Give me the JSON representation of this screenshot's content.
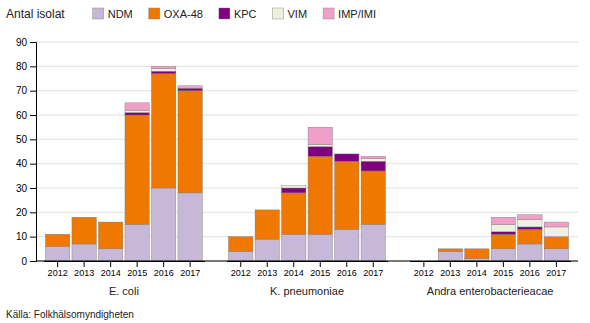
{
  "chart_data": {
    "type": "bar",
    "stacked": true,
    "ylabel": "Antal isolat",
    "source": "Källa: Folkhälsomyndigheten",
    "groups": [
      "E. coli",
      "K. pneumoniae",
      "Andra enterobacterieacae"
    ],
    "categories": [
      "2012",
      "2013",
      "2014",
      "2015",
      "2016",
      "2017"
    ],
    "series": [
      {
        "name": "NDM",
        "color": "#c8b8d8",
        "values": [
          [
            6,
            7,
            5,
            15,
            30,
            28
          ],
          [
            4,
            9,
            11,
            11,
            13,
            15
          ],
          [
            0,
            4,
            1,
            5,
            7,
            5
          ]
        ]
      },
      {
        "name": "OXA-48",
        "color": "#f07800",
        "values": [
          [
            5,
            11,
            11,
            45,
            47,
            42
          ],
          [
            6,
            12,
            17,
            32,
            28,
            22
          ],
          [
            0,
            1,
            4,
            6,
            6,
            5
          ]
        ]
      },
      {
        "name": "KPC",
        "color": "#800080",
        "values": [
          [
            0,
            0,
            0,
            1,
            1,
            1
          ],
          [
            0,
            0,
            2,
            4,
            3,
            4
          ],
          [
            0,
            0,
            0,
            1,
            1,
            0
          ]
        ]
      },
      {
        "name": "VIM",
        "color": "#f0f0e0",
        "values": [
          [
            0,
            0,
            0,
            1,
            1,
            0
          ],
          [
            0,
            0,
            1,
            1,
            0,
            1
          ],
          [
            0,
            0,
            0,
            3,
            3,
            4
          ]
        ]
      },
      {
        "name": "IMP/IMI",
        "color": "#f0a0c8",
        "values": [
          [
            0,
            0,
            0,
            3,
            1,
            1
          ],
          [
            0,
            0,
            0,
            7,
            0,
            1
          ],
          [
            0,
            0,
            0,
            3,
            2,
            2
          ]
        ]
      }
    ],
    "ylim": [
      0,
      90
    ],
    "yticks": [
      0,
      10,
      20,
      30,
      40,
      50,
      60,
      70,
      80,
      90
    ],
    "grid": true,
    "legend": "top"
  }
}
